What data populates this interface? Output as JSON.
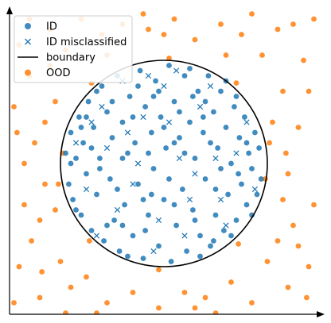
{
  "chart_data": {
    "type": "scatter",
    "title": "",
    "xlabel": "",
    "ylabel": "",
    "xlim": [
      -1.5,
      1.5
    ],
    "ylim": [
      -1.5,
      1.5
    ],
    "axes": "arrows, no ticks",
    "grid": false,
    "legend": {
      "placement": "top-left",
      "entries": [
        {
          "label": "ID",
          "marker": "circle",
          "color": "#1f77b4"
        },
        {
          "label": "ID misclassified",
          "marker": "x",
          "color": "#1f77b4"
        },
        {
          "label": "boundary",
          "marker": "line",
          "color": "#000000"
        },
        {
          "label": "OOD",
          "marker": "circle",
          "color": "#ff7f0e"
        }
      ]
    },
    "boundary": {
      "shape": "circle",
      "center": [
        0,
        0
      ],
      "radius": 1.0,
      "color": "#000000"
    },
    "series": [
      {
        "name": "ID",
        "marker": "circle",
        "color": "#1f77b4",
        "points": [
          [
            -0.95,
            0.1
          ],
          [
            -0.92,
            -0.2
          ],
          [
            -0.9,
            0.3
          ],
          [
            -0.88,
            -0.35
          ],
          [
            -0.85,
            0.05
          ],
          [
            -0.82,
            0.45
          ],
          [
            -0.8,
            -0.5
          ],
          [
            -0.78,
            0.2
          ],
          [
            -0.75,
            -0.1
          ],
          [
            -0.73,
            0.6
          ],
          [
            -0.7,
            -0.65
          ],
          [
            -0.68,
            0.35
          ],
          [
            -0.65,
            -0.3
          ],
          [
            -0.62,
            0.05
          ],
          [
            -0.6,
            0.75
          ],
          [
            -0.58,
            -0.75
          ],
          [
            -0.55,
            0.5
          ],
          [
            -0.52,
            -0.15
          ],
          [
            -0.5,
            0.25
          ],
          [
            -0.48,
            -0.55
          ],
          [
            -0.45,
            0.85
          ],
          [
            -0.43,
            -0.85
          ],
          [
            -0.4,
            0.4
          ],
          [
            -0.38,
            -0.4
          ],
          [
            -0.35,
            0.1
          ],
          [
            -0.33,
            0.65
          ],
          [
            -0.3,
            -0.7
          ],
          [
            -0.28,
            0.2
          ],
          [
            -0.25,
            -0.2
          ],
          [
            -0.23,
            0.9
          ],
          [
            -0.2,
            -0.92
          ],
          [
            -0.18,
            0.55
          ],
          [
            -0.15,
            -0.5
          ],
          [
            -0.12,
            0.3
          ],
          [
            -0.1,
            -0.05
          ],
          [
            -0.08,
            0.8
          ],
          [
            -0.05,
            -0.8
          ],
          [
            -0.03,
            0.45
          ],
          [
            0.0,
            -0.35
          ],
          [
            0.02,
            0.15
          ],
          [
            0.05,
            0.95
          ],
          [
            0.07,
            -0.95
          ],
          [
            0.1,
            0.6
          ],
          [
            0.12,
            -0.6
          ],
          [
            0.15,
            0.25
          ],
          [
            0.18,
            -0.25
          ],
          [
            0.2,
            0.85
          ],
          [
            0.22,
            -0.85
          ],
          [
            0.25,
            0.4
          ],
          [
            0.28,
            -0.45
          ],
          [
            0.3,
            0.05
          ],
          [
            0.33,
            0.7
          ],
          [
            0.35,
            -0.7
          ],
          [
            0.38,
            0.3
          ],
          [
            0.4,
            -0.15
          ],
          [
            0.43,
            0.85
          ],
          [
            0.45,
            -0.8
          ],
          [
            0.48,
            0.5
          ],
          [
            0.5,
            -0.5
          ],
          [
            0.52,
            0.15
          ],
          [
            0.55,
            0.7
          ],
          [
            0.58,
            -0.65
          ],
          [
            0.6,
            0.35
          ],
          [
            0.62,
            -0.3
          ],
          [
            0.65,
            0.0
          ],
          [
            0.68,
            0.55
          ],
          [
            0.7,
            -0.55
          ],
          [
            0.73,
            0.25
          ],
          [
            0.75,
            -0.2
          ],
          [
            0.78,
            0.45
          ],
          [
            0.8,
            -0.4
          ],
          [
            0.82,
            0.1
          ],
          [
            0.85,
            -0.05
          ],
          [
            0.88,
            0.3
          ],
          [
            0.9,
            -0.3
          ],
          [
            0.92,
            0.15
          ],
          [
            0.94,
            -0.15
          ],
          [
            -0.65,
            0.7
          ],
          [
            -0.55,
            -0.6
          ],
          [
            -0.4,
            0.05
          ],
          [
            -0.3,
            0.45
          ],
          [
            -0.2,
            -0.35
          ],
          [
            -0.1,
            0.65
          ],
          [
            0.0,
            0.35
          ],
          [
            0.1,
            -0.4
          ],
          [
            0.2,
            0.1
          ],
          [
            0.3,
            -0.55
          ],
          [
            0.4,
            0.6
          ],
          [
            0.5,
            -0.25
          ],
          [
            0.6,
            0.8
          ],
          [
            -0.85,
            -0.45
          ],
          [
            -0.75,
            0.45
          ],
          [
            -0.35,
            -0.9
          ],
          [
            0.25,
            0.92
          ],
          [
            0.7,
            0.65
          ],
          [
            0.85,
            -0.5
          ],
          [
            -0.15,
            0.1
          ],
          [
            0.05,
            -0.15
          ],
          [
            -0.45,
            -0.25
          ],
          [
            0.45,
            0.2
          ],
          [
            -0.62,
            -0.05
          ],
          [
            -0.05,
            0.7
          ],
          [
            0.35,
            -0.9
          ],
          [
            0.65,
            -0.7
          ],
          [
            -0.9,
            0.0
          ],
          [
            -0.25,
            0.75
          ],
          [
            0.15,
            0.5
          ],
          [
            0.55,
            -0.05
          ],
          [
            -0.7,
            0.15
          ],
          [
            0.8,
            0.2
          ],
          [
            -0.5,
            0.6
          ],
          [
            0.1,
            0.2
          ],
          [
            -0.18,
            -0.65
          ],
          [
            0.28,
            0.65
          ],
          [
            -0.8,
            0.35
          ],
          [
            0.72,
            -0.1
          ],
          [
            -0.4,
            -0.6
          ],
          [
            0.48,
            -0.75
          ],
          [
            -0.12,
            -0.3
          ],
          [
            0.38,
            0.45
          ]
        ]
      },
      {
        "name": "ID misclassified",
        "marker": "x",
        "color": "#1f77b4",
        "points": [
          [
            -0.6,
            0.55
          ],
          [
            -0.75,
            -0.25
          ],
          [
            -0.35,
            0.3
          ],
          [
            -0.15,
            0.85
          ],
          [
            -0.45,
            -0.45
          ],
          [
            0.05,
            0.4
          ],
          [
            0.2,
            -0.7
          ],
          [
            -0.25,
            0.0
          ],
          [
            0.35,
            0.55
          ],
          [
            0.55,
            -0.35
          ],
          [
            0.15,
            0.05
          ],
          [
            -0.05,
            -0.55
          ],
          [
            -0.55,
            0.15
          ],
          [
            0.45,
            0.75
          ],
          [
            0.7,
            0.1
          ],
          [
            -0.85,
            0.2
          ],
          [
            0.3,
            -0.1
          ],
          [
            -0.2,
            0.45
          ],
          [
            0.6,
            -0.6
          ],
          [
            0.0,
            0.75
          ],
          [
            -0.65,
            -0.7
          ],
          [
            0.8,
            0.4
          ],
          [
            0.25,
            -0.35
          ],
          [
            -0.4,
            0.8
          ],
          [
            0.5,
            0.05
          ],
          [
            -0.1,
            -0.85
          ],
          [
            0.88,
            -0.25
          ],
          [
            -0.3,
            -0.2
          ],
          [
            0.12,
            0.9
          ],
          [
            -0.7,
            0.4
          ]
        ]
      },
      {
        "name": "OOD",
        "marker": "circle",
        "color": "#ff7f0e",
        "points": [
          [
            -1.4,
            1.15
          ],
          [
            -1.3,
            0.85
          ],
          [
            -1.25,
            0.2
          ],
          [
            -1.35,
            -0.4
          ],
          [
            -1.28,
            -0.75
          ],
          [
            -1.4,
            -1.0
          ],
          [
            -1.2,
            -1.3
          ],
          [
            -1.1,
            1.3
          ],
          [
            -1.05,
            0.6
          ],
          [
            -1.15,
            -0.2
          ],
          [
            -1.0,
            -0.95
          ],
          [
            -0.95,
            1.1
          ],
          [
            -0.9,
            -1.2
          ],
          [
            -0.8,
            1.4
          ],
          [
            -0.75,
            -1.1
          ],
          [
            -0.6,
            1.25
          ],
          [
            -0.55,
            -1.35
          ],
          [
            -0.4,
            1.35
          ],
          [
            -0.3,
            -1.25
          ],
          [
            -0.15,
            1.3
          ],
          [
            -0.05,
            -1.4
          ],
          [
            0.1,
            1.4
          ],
          [
            0.2,
            -1.25
          ],
          [
            0.3,
            1.2
          ],
          [
            0.4,
            -1.3
          ],
          [
            0.55,
            1.35
          ],
          [
            0.65,
            -1.15
          ],
          [
            0.75,
            1.25
          ],
          [
            0.85,
            -1.35
          ],
          [
            0.95,
            1.05
          ],
          [
            1.0,
            -0.95
          ],
          [
            1.1,
            1.3
          ],
          [
            1.15,
            0.7
          ],
          [
            1.2,
            -0.1
          ],
          [
            1.25,
            -0.6
          ],
          [
            1.3,
            0.35
          ],
          [
            1.35,
            1.0
          ],
          [
            1.4,
            -1.0
          ],
          [
            1.38,
            -1.3
          ],
          [
            1.2,
            -1.2
          ],
          [
            -1.45,
            0.55
          ],
          [
            -1.35,
            0.0
          ],
          [
            -1.2,
            -0.55
          ],
          [
            -1.1,
            0.95
          ],
          [
            -1.05,
            -0.45
          ],
          [
            1.05,
            0.4
          ],
          [
            1.15,
            -0.35
          ],
          [
            1.3,
            -0.8
          ],
          [
            1.4,
            0.7
          ],
          [
            1.25,
            1.35
          ],
          [
            -0.98,
            0.1
          ],
          [
            -1.02,
            -0.2
          ],
          [
            0.98,
            -0.15
          ],
          [
            1.02,
            0.2
          ],
          [
            -0.7,
            0.78
          ],
          [
            0.72,
            -0.78
          ],
          [
            -0.72,
            -0.75
          ],
          [
            0.7,
            0.78
          ],
          [
            0.05,
            1.02
          ],
          [
            -0.05,
            -1.03
          ],
          [
            -1.3,
            1.4
          ],
          [
            -0.95,
            -1.45
          ],
          [
            0.5,
            -1.45
          ],
          [
            1.45,
            1.4
          ],
          [
            -1.45,
            -1.35
          ],
          [
            0.0,
            1.25
          ],
          [
            -1.15,
            0.4
          ],
          [
            1.18,
            0.1
          ],
          [
            0.85,
            1.45
          ],
          [
            -0.65,
            -1.45
          ],
          [
            1.45,
            -0.4
          ],
          [
            -1.42,
            0.3
          ],
          [
            0.3,
            -1.4
          ],
          [
            -0.2,
            1.45
          ],
          [
            1.1,
            -0.75
          ],
          [
            -1.18,
            -1.05
          ],
          [
            0.6,
            1.05
          ],
          [
            -0.55,
            1.05
          ]
        ]
      }
    ]
  }
}
